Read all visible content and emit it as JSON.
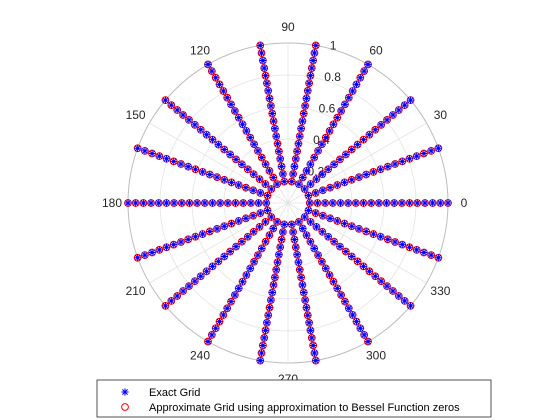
{
  "chart_data": {
    "type": "scatter",
    "coordinate_system": "polar",
    "theta_unit": "degrees",
    "theta_ticks": [
      "0",
      "30",
      "60",
      "90",
      "120",
      "150",
      "180",
      "210",
      "240",
      "270",
      "300",
      "330"
    ],
    "r_ticks": [
      "0.2",
      "0.4",
      "0.6",
      "0.8",
      "1"
    ],
    "rlim": [
      0,
      1
    ],
    "grid": true,
    "legend_placement": "bottom",
    "angles_deg": [
      0,
      20,
      40,
      60,
      80,
      100,
      120,
      140,
      160,
      180,
      200,
      220,
      240,
      260,
      280,
      300,
      320,
      340
    ],
    "series": [
      {
        "name": "Exact Grid",
        "marker": "asterisk",
        "color": "#0000ff",
        "r": [
          0.136,
          0.184,
          0.232,
          0.28,
          0.328,
          0.376,
          0.424,
          0.472,
          0.52,
          0.568,
          0.616,
          0.664,
          0.712,
          0.76,
          0.808,
          0.856,
          0.904,
          0.952,
          1.0
        ]
      },
      {
        "name": "Approximate Grid using approximation to Bessel Function zeros",
        "marker": "circle",
        "color": "#ff0000",
        "r": [
          0.136,
          0.184,
          0.232,
          0.28,
          0.328,
          0.376,
          0.424,
          0.472,
          0.52,
          0.568,
          0.616,
          0.664,
          0.712,
          0.76,
          0.808,
          0.856,
          0.904,
          0.952,
          1.0
        ]
      }
    ]
  }
}
